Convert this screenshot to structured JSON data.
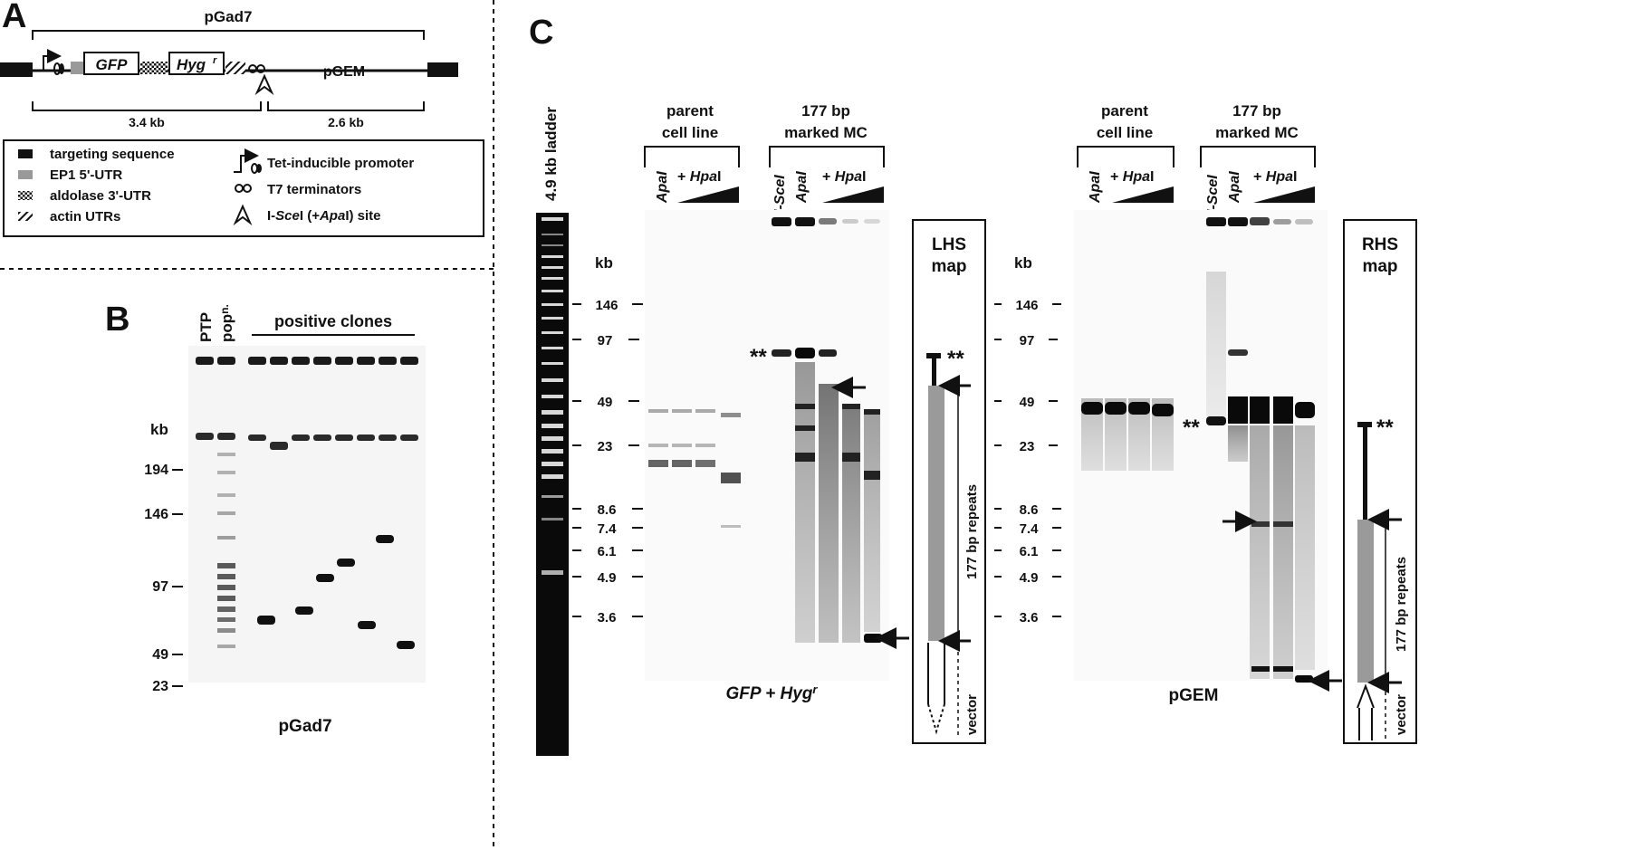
{
  "panels": {
    "A": {
      "letter": "A",
      "construct_name": "pGad7",
      "genes": {
        "gfp": "GFP",
        "hyg": "Hyg",
        "hyg_sup": "r"
      },
      "pgem": "pGEM",
      "sizes": {
        "left": "3.4 kb",
        "right": "2.6 kb"
      },
      "legend": {
        "targeting": "targeting sequence",
        "ep1": "EP1 5'-UTR",
        "aldolase": "aldolase 3'-UTR",
        "actin": "actin UTRs",
        "tet": "Tet-inducible promoter",
        "t7": "T7 terminators",
        "isce_pre": "I-",
        "isce_it": "Sce",
        "isce_mid": "I (+",
        "isce_apa": "Apa",
        "isce_post": "I) site"
      }
    },
    "B": {
      "letter": "B",
      "lane_ptp": "PTP",
      "lane_pop": "pop",
      "lane_pop_sup": "n.",
      "header": "positive clones",
      "kb": "kb",
      "markers": [
        "194",
        "146",
        "97",
        "49",
        "23"
      ],
      "caption": "pGad7"
    },
    "C": {
      "letter": "C",
      "ladder_label": "4.9 kb ladder",
      "kb": "kb",
      "markers": [
        "146",
        "97",
        "49",
        "23",
        "8.6",
        "7.4",
        "6.1",
        "4.9",
        "3.6"
      ],
      "group_parent": [
        "parent",
        "cell line"
      ],
      "group_marked": [
        "177 bp",
        "marked MC"
      ],
      "lane_isce": "I-SceI",
      "lane_apa": "ApaI",
      "lane_hpa_plus": "+ ",
      "lane_hpa": "Hpa",
      "lane_hpa_tail": "I",
      "left_caption_gfp": "GFP + Hyg",
      "left_caption_sup": "r",
      "right_caption": "pGEM",
      "lhs_map": [
        "LHS",
        "map"
      ],
      "rhs_map": [
        "RHS",
        "map"
      ],
      "repeats_label": "177 bp repeats",
      "vector_label": "vector",
      "stars": "**"
    }
  },
  "colors": {
    "ink": "#111111",
    "gray": "#9a9a9a",
    "gel_bg": "#ffffff"
  }
}
